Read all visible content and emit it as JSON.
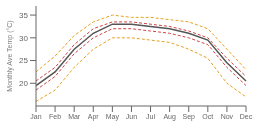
{
  "chart_data": {
    "type": "line",
    "ylabel": "Monthly Ave Temp (°C)",
    "categories": [
      "Jan",
      "Feb",
      "Mar",
      "Apr",
      "May",
      "Jun",
      "Jul",
      "Aug",
      "Sep",
      "Oct",
      "Nov",
      "Dec"
    ],
    "series": [
      {
        "color": "#e8a020",
        "line_style": "dashed",
        "values": [
          22.5,
          26.0,
          30.5,
          33.5,
          35.0,
          34.5,
          34.5,
          34.0,
          33.5,
          32.0,
          27.5,
          23.0
        ]
      },
      {
        "color": "#e8a020",
        "line_style": "dashed",
        "values": [
          16.0,
          18.5,
          23.5,
          27.5,
          30.0,
          30.0,
          29.5,
          29.0,
          27.5,
          25.5,
          20.0,
          17.0
        ]
      },
      {
        "color": "#cc4444",
        "line_style": "dashed",
        "values": [
          20.5,
          23.5,
          28.5,
          32.0,
          33.5,
          33.5,
          33.0,
          32.5,
          31.5,
          30.0,
          25.5,
          21.5
        ]
      },
      {
        "color": "#cc4444",
        "line_style": "dashed",
        "values": [
          18.5,
          21.5,
          26.5,
          30.0,
          32.0,
          32.0,
          31.5,
          31.0,
          30.0,
          28.5,
          23.5,
          19.5
        ]
      },
      {
        "color": "#555555",
        "line_style": "solid",
        "values": [
          19.5,
          22.5,
          27.5,
          31.0,
          33.0,
          33.0,
          32.5,
          32.0,
          31.0,
          29.5,
          24.5,
          20.5
        ]
      }
    ],
    "ylim": [
      15,
      37
    ],
    "yticks": [
      20,
      25,
      30,
      35
    ],
    "grid": false
  }
}
